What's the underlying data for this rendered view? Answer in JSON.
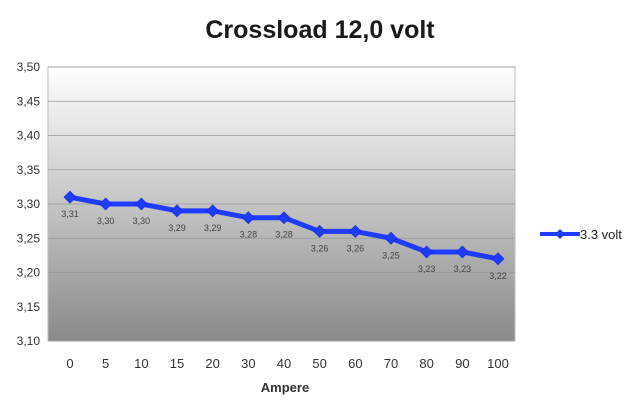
{
  "chart_data": {
    "type": "line",
    "title": "Crossload 12,0 volt",
    "xlabel": "Ampere",
    "ylabel": "",
    "categories": [
      "0",
      "5",
      "10",
      "15",
      "20",
      "30",
      "40",
      "50",
      "60",
      "70",
      "80",
      "90",
      "100"
    ],
    "series": [
      {
        "name": "3.3 volt",
        "color": "#1f3bff",
        "values": [
          3.31,
          3.3,
          3.3,
          3.29,
          3.29,
          3.28,
          3.28,
          3.26,
          3.26,
          3.25,
          3.23,
          3.23,
          3.22
        ],
        "labels": [
          "3,31",
          "3,30",
          "3,30",
          "3,29",
          "3,29",
          "3,28",
          "3,28",
          "3,26",
          "3,26",
          "3,25",
          "3,23",
          "3,23",
          "3,22"
        ]
      }
    ],
    "ylim": [
      3.1,
      3.5
    ],
    "yticks": [
      "3,10",
      "3,15",
      "3,20",
      "3,25",
      "3,30",
      "3,35",
      "3,40",
      "3,45",
      "3,50"
    ],
    "grid": true,
    "legend": "right",
    "colors": {
      "plot_top": "#ffffff",
      "plot_bottom": "#8a8a8a",
      "gridline": "#9a9a9a"
    }
  }
}
